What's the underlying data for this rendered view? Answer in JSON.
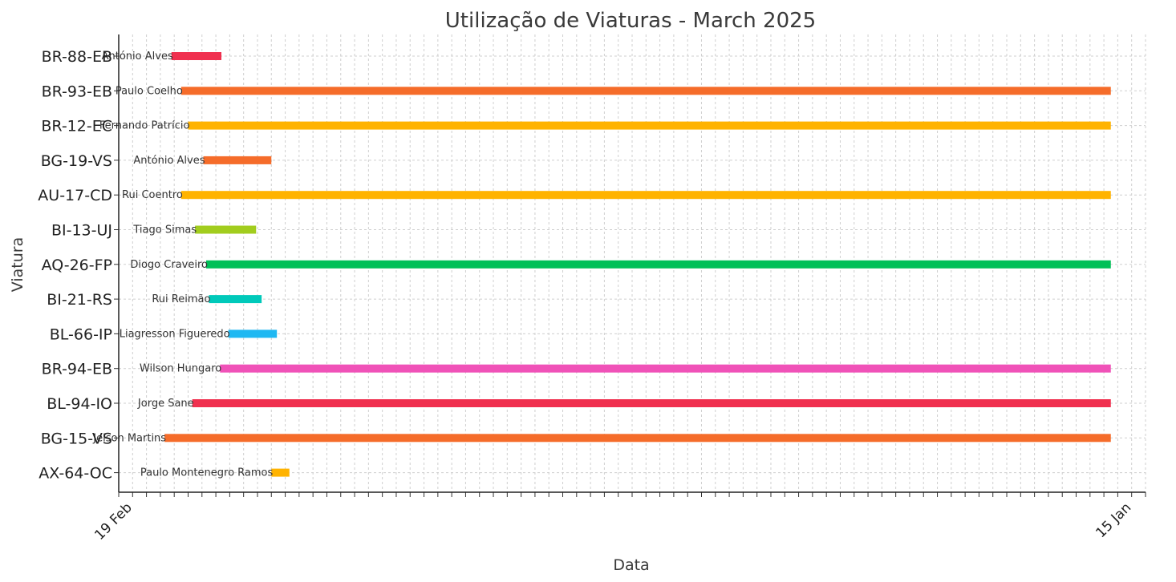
{
  "chart_data": {
    "type": "gantt",
    "title": "Utilização de Viaturas - March 2025",
    "xlabel": "Data",
    "ylabel": "Viatura",
    "grid": true,
    "rows": [
      {
        "vehicle": "BR-88-EB",
        "driver": "António Alves",
        "start": 0.8,
        "end": 4.4,
        "color": "#f0304f"
      },
      {
        "vehicle": "BR-93-EB",
        "driver": "Paulo Coelho",
        "start": 1.5,
        "end": 68.5,
        "color": "#f56c2a"
      },
      {
        "vehicle": "BR-12-EC",
        "driver": "Fernando Patrício",
        "start": 2.0,
        "end": 68.5,
        "color": "#ffb300"
      },
      {
        "vehicle": "BG-19-VS",
        "driver": "António Alves",
        "start": 3.1,
        "end": 8.0,
        "color": "#f56c2a"
      },
      {
        "vehicle": "AU-17-CD",
        "driver": "Rui Coentro",
        "start": 1.5,
        "end": 68.5,
        "color": "#ffb300"
      },
      {
        "vehicle": "BI-13-UJ",
        "driver": "Tiago Simas",
        "start": 2.5,
        "end": 6.9,
        "color": "#a2cd1e"
      },
      {
        "vehicle": "AQ-26-FP",
        "driver": "Diogo Craveiro",
        "start": 3.3,
        "end": 68.5,
        "color": "#00c058"
      },
      {
        "vehicle": "BI-21-RS",
        "driver": "Rui Reimão",
        "start": 3.5,
        "end": 7.3,
        "color": "#00c9ba"
      },
      {
        "vehicle": "BL-66-IP",
        "driver": "Liagresson Figueredo",
        "start": 4.9,
        "end": 8.4,
        "color": "#1fb8f2"
      },
      {
        "vehicle": "BR-94-EB",
        "driver": "Wilson Hungaro",
        "start": 4.3,
        "end": 68.5,
        "color": "#f052b8"
      },
      {
        "vehicle": "BL-94-IO",
        "driver": "Jorge Sane",
        "start": 2.3,
        "end": 68.5,
        "color": "#f0304f"
      },
      {
        "vehicle": "BG-15-VS",
        "driver": "Jelson Martins",
        "start": 0.3,
        "end": 68.5,
        "color": "#f56c2a"
      },
      {
        "vehicle": "AX-64-OC",
        "driver": "Paulo Montenegro Ramos",
        "start": 8.0,
        "end": 9.3,
        "color": "#ffb300"
      }
    ],
    "xlim": [
      -3,
      71
    ],
    "xticks_visible_start": "19 Feb",
    "xticks_visible_end": "15 Jan"
  }
}
